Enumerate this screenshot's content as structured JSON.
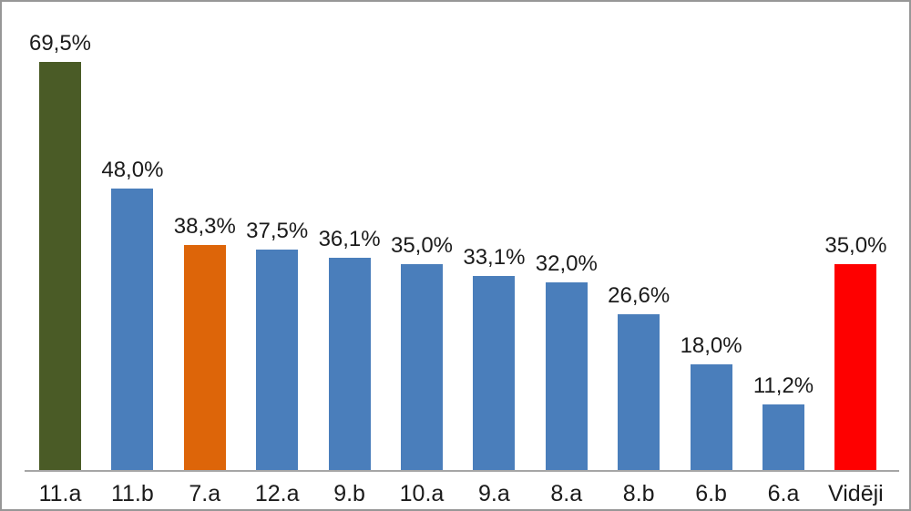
{
  "chart_data": {
    "type": "bar",
    "title": "",
    "xlabel": "",
    "ylabel": "",
    "categories": [
      "11.a",
      "11.b",
      "7.a",
      "12.a",
      "9.b",
      "10.a",
      "9.a",
      "8.a",
      "8.b",
      "6.b",
      "6.a",
      "Vidēji"
    ],
    "values": [
      69.5,
      48.0,
      38.3,
      37.5,
      36.1,
      35.0,
      33.1,
      32.0,
      26.6,
      18.0,
      11.2,
      35.0
    ],
    "value_labels": [
      "69,5%",
      "48,0%",
      "38,3%",
      "37,5%",
      "36,1%",
      "35,0%",
      "33,1%",
      "32,0%",
      "26,6%",
      "18,0%",
      "11,2%",
      "35,0%"
    ],
    "bar_colors": [
      "#4a5b26",
      "#4a7ebb",
      "#dd6509",
      "#4a7ebb",
      "#4a7ebb",
      "#4a7ebb",
      "#4a7ebb",
      "#4a7ebb",
      "#4a7ebb",
      "#4a7ebb",
      "#4a7ebb",
      "#fe0000"
    ],
    "ylim": [
      0,
      77.5
    ],
    "grid": false,
    "legend_position": "none",
    "data_labels_shown": true,
    "axis_ticks_shown": false,
    "axis_line_color": "#a6a6a6",
    "frame_border_color": "#979797",
    "text_color": "#1b1b1b",
    "background_color": "#ffffff"
  }
}
